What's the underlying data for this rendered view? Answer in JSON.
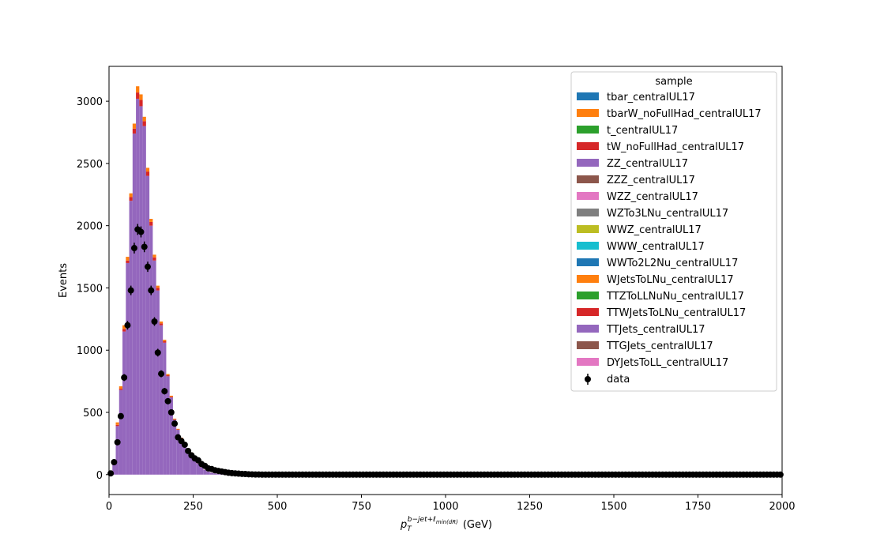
{
  "chart_data": {
    "type": "bar",
    "stacked": true,
    "xlabel_main": "p",
    "xlabel_sub": "T",
    "xlabel_sup": "b−jet+ℓ",
    "xlabel_sup_sub": "min(dR)",
    "xlabel_unit": "(GeV)",
    "ylabel": "Events",
    "xlim": [
      0,
      2000
    ],
    "ylim": [
      -160,
      3280
    ],
    "xticks": [
      "0",
      "250",
      "500",
      "750",
      "1000",
      "1250",
      "1500",
      "1750",
      "2000"
    ],
    "yticks": [
      "0",
      "500",
      "1000",
      "1500",
      "2000",
      "2500",
      "3000"
    ],
    "bin_width": 10,
    "legend": {
      "title": "sample",
      "position": "top-right",
      "entries": [
        {
          "label": "tbar_centralUL17",
          "color": "#1f77b4"
        },
        {
          "label": "tbarW_noFullHad_centralUL17",
          "color": "#ff7f0e"
        },
        {
          "label": "t_centralUL17",
          "color": "#2ca02c"
        },
        {
          "label": "tW_noFullHad_centralUL17",
          "color": "#d62728"
        },
        {
          "label": "ZZ_centralUL17",
          "color": "#9467bd"
        },
        {
          "label": "ZZZ_centralUL17",
          "color": "#8c564b"
        },
        {
          "label": "WZZ_centralUL17",
          "color": "#e377c2"
        },
        {
          "label": "WZTo3LNu_centralUL17",
          "color": "#7f7f7f"
        },
        {
          "label": "WWZ_centralUL17",
          "color": "#bcbd22"
        },
        {
          "label": "WWW_centralUL17",
          "color": "#17becf"
        },
        {
          "label": "WWTo2L2Nu_centralUL17",
          "color": "#1f77b4"
        },
        {
          "label": "WJetsToLNu_centralUL17",
          "color": "#ff7f0e"
        },
        {
          "label": "TTZToLLNuNu_centralUL17",
          "color": "#2ca02c"
        },
        {
          "label": "TTWJetsToLNu_centralUL17",
          "color": "#d62728"
        },
        {
          "label": "TTJets_centralUL17",
          "color": "#9467bd"
        },
        {
          "label": "TTGJets_centralUL17",
          "color": "#8c564b"
        },
        {
          "label": "DYJetsToLL_centralUL17",
          "color": "#e377c2"
        }
      ],
      "data_label": "data"
    },
    "stack_series": [
      {
        "name": "TTJets_centralUL17",
        "color": "#9467bd",
        "values": [
          8,
          90,
          390,
          680,
          1150,
          1700,
          2200,
          2740,
          3020,
          2960,
          2800,
          2400,
          2000,
          1720,
          1480,
          1200,
          1060,
          790,
          620,
          440,
          360,
          290,
          240,
          205,
          175,
          130,
          90,
          60,
          40,
          25,
          15,
          10,
          5,
          3,
          2,
          1,
          1,
          0.5,
          0.3,
          0.2
        ]
      },
      {
        "name": "TTWJetsToLNu_centralUL17",
        "color": "#d62728",
        "values": [
          0,
          3,
          10,
          10,
          20,
          20,
          30,
          40,
          50,
          50,
          40,
          35,
          30,
          25,
          20,
          15,
          12,
          8,
          6,
          4,
          3,
          3,
          2,
          2,
          1,
          1,
          1,
          0.5,
          0.3,
          0.2,
          0.1,
          0,
          0,
          0,
          0,
          0,
          0,
          0,
          0,
          0
        ]
      },
      {
        "name": "tbarW_noFullHad_centralUL17",
        "color": "#ff7f0e",
        "values": [
          2,
          7,
          20,
          20,
          30,
          30,
          30,
          40,
          50,
          45,
          35,
          30,
          25,
          22,
          18,
          15,
          12,
          10,
          8,
          6,
          5,
          4,
          3,
          3,
          2,
          2,
          1,
          1,
          0.5,
          0.3,
          0.2,
          0.1,
          0,
          0,
          0,
          0,
          0,
          0,
          0,
          0
        ]
      }
    ],
    "data_points": {
      "label": "data",
      "x": [
        5,
        15,
        25,
        35,
        45,
        55,
        65,
        75,
        85,
        95,
        105,
        115,
        125,
        135,
        145,
        155,
        165,
        175,
        185,
        195,
        205,
        215,
        225,
        235,
        245,
        255,
        265,
        275,
        285,
        295,
        305,
        315,
        325,
        335,
        345,
        355,
        365,
        375,
        385,
        395,
        405,
        415,
        425,
        435,
        445
      ],
      "y": [
        10,
        100,
        260,
        470,
        780,
        1200,
        1480,
        1820,
        1970,
        1950,
        1830,
        1670,
        1480,
        1230,
        980,
        810,
        670,
        590,
        500,
        410,
        300,
        270,
        240,
        190,
        155,
        130,
        115,
        85,
        70,
        50,
        45,
        35,
        30,
        25,
        20,
        15,
        12,
        10,
        8,
        6,
        5,
        3,
        2,
        1,
        1
      ],
      "err": [
        3,
        10,
        16,
        22,
        28,
        35,
        38,
        43,
        44,
        44,
        43,
        41,
        38,
        35,
        31,
        28,
        26,
        24,
        22,
        20,
        17,
        16,
        15,
        14,
        12,
        11,
        11,
        9,
        8,
        7,
        7,
        6,
        5,
        5,
        4,
        4,
        3,
        3,
        3,
        2,
        2,
        2,
        1,
        1,
        1
      ],
      "zero_from": 450,
      "zero_to": 2000
    }
  }
}
